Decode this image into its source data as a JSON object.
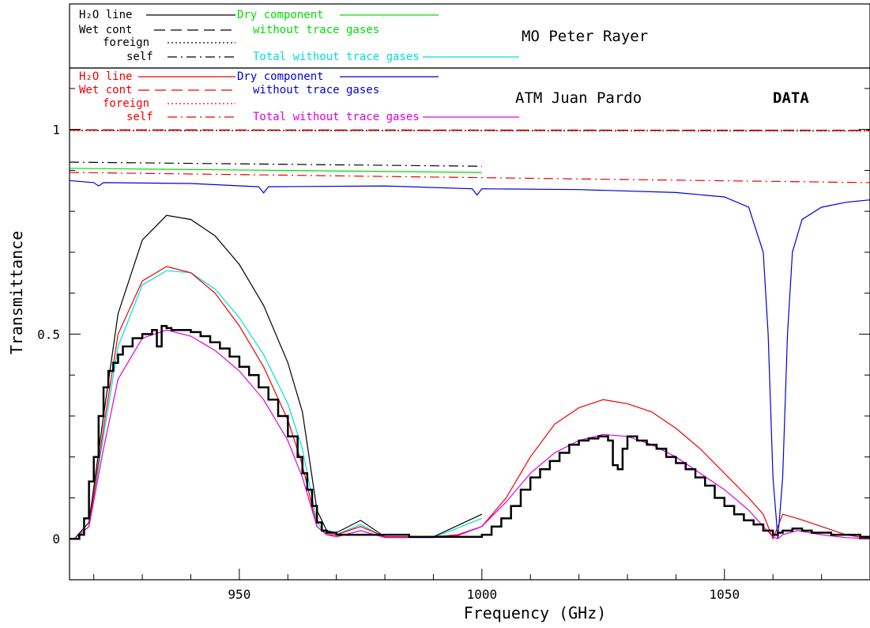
{
  "chart_data": {
    "type": "line",
    "xlabel": "Frequency (GHz)",
    "ylabel": "Transmittance",
    "xlim": [
      915,
      1080
    ],
    "ylim": [
      -0.1,
      1.15
    ],
    "x_ticks": [
      {
        "value": 950,
        "label": "950"
      },
      {
        "value": 1000,
        "label": "1000"
      },
      {
        "value": 1050,
        "label": "1050"
      }
    ],
    "y_ticks": [
      {
        "value": 0,
        "label": "0"
      },
      {
        "value": 0.5,
        "label": "0.5"
      },
      {
        "value": 1,
        "label": "1"
      }
    ],
    "grid": false,
    "panels": [
      {
        "title": "MO Peter Rayer",
        "legend": [
          {
            "label": "H₂O line",
            "color": "#000000",
            "dash": "solid"
          },
          {
            "label": "Wet cont",
            "color": "#000000",
            "dash": "dashed"
          },
          {
            "label": "foreign",
            "color": "#000000",
            "dash": "dotted"
          },
          {
            "label": "self",
            "color": "#000000",
            "dash": "dashdot"
          },
          {
            "label": "Dry component",
            "color": "#00dd00",
            "dash": "solid"
          },
          {
            "label": "without trace gases",
            "color": "#00dd00",
            "dash": "none"
          },
          {
            "label": "Total without trace gases",
            "color": "#00dddd",
            "dash": "solid"
          }
        ]
      },
      {
        "title": "ATM Juan Pardo",
        "legend": [
          {
            "label": "H₂O line",
            "color": "#ee0000",
            "dash": "solid"
          },
          {
            "label": "Wet cont",
            "color": "#ee0000",
            "dash": "dashed"
          },
          {
            "label": "foreign",
            "color": "#ee0000",
            "dash": "dotted"
          },
          {
            "label": "self",
            "color": "#ee0000",
            "dash": "dashdot"
          },
          {
            "label": "Dry component",
            "color": "#0000dd",
            "dash": "solid"
          },
          {
            "label": "without trace gases",
            "color": "#0000dd",
            "dash": "none"
          },
          {
            "label": "Total without trace gases",
            "color": "#dd00dd",
            "dash": "solid"
          }
        ]
      }
    ],
    "data_label": "DATA",
    "series": [
      {
        "color": "#000000",
        "dash": "solid",
        "x": [
          916,
          919,
          922,
          925,
          930,
          935,
          940,
          945,
          950,
          955,
          960,
          963,
          965,
          966,
          968,
          970,
          975,
          980,
          990,
          1000
        ],
        "y": [
          0,
          0.04,
          0.3,
          0.55,
          0.73,
          0.79,
          0.78,
          0.74,
          0.67,
          0.57,
          0.43,
          0.31,
          0.15,
          0.07,
          0.02,
          0.015,
          0.045,
          0.005,
          0.005,
          0.06
        ]
      },
      {
        "color": "#000000",
        "dash": "dashed",
        "x": [
          915,
          1080
        ],
        "y": [
          0.999,
          0.998
        ]
      },
      {
        "color": "#000000",
        "dash": "dotted",
        "x": [
          915,
          1080
        ],
        "y": [
          0.998,
          0.997
        ]
      },
      {
        "color": "#000000",
        "dash": "dashdot",
        "x": [
          915,
          1000
        ],
        "y": [
          0.92,
          0.91
        ]
      },
      {
        "color": "#00dd00",
        "dash": "solid",
        "x": [
          915,
          1000
        ],
        "y": [
          0.905,
          0.895
        ]
      },
      {
        "color": "#00dddd",
        "dash": "solid",
        "x": [
          916,
          919,
          922,
          925,
          930,
          935,
          940,
          945,
          950,
          955,
          960,
          963,
          965,
          966,
          968,
          970,
          975,
          980,
          990,
          1000
        ],
        "y": [
          0,
          0.03,
          0.25,
          0.47,
          0.62,
          0.655,
          0.65,
          0.61,
          0.54,
          0.45,
          0.33,
          0.22,
          0.1,
          0.04,
          0.01,
          0.01,
          0.035,
          0.003,
          0.003,
          0.05
        ]
      },
      {
        "color": "#ee0000",
        "dash": "solid",
        "x": [
          916,
          919,
          922,
          925,
          930,
          935,
          940,
          945,
          950,
          955,
          960,
          963,
          965,
          966,
          968,
          970,
          975,
          980,
          990,
          995,
          1000,
          1005,
          1010,
          1015,
          1020,
          1025,
          1030,
          1035,
          1040,
          1045,
          1050,
          1055,
          1058,
          1060,
          1062,
          1065,
          1070,
          1075,
          1080
        ],
        "y": [
          0,
          0.03,
          0.27,
          0.5,
          0.63,
          0.665,
          0.65,
          0.6,
          0.52,
          0.42,
          0.29,
          0.18,
          0.08,
          0.03,
          0.01,
          0.01,
          0.03,
          0.005,
          0.005,
          0.01,
          0.03,
          0.1,
          0.2,
          0.28,
          0.32,
          0.34,
          0.33,
          0.31,
          0.27,
          0.22,
          0.16,
          0.1,
          0.06,
          0.0,
          0.06,
          0.05,
          0.03,
          0.01,
          0.0
        ]
      },
      {
        "color": "#ee0000",
        "dash": "dashed",
        "x": [
          915,
          1080
        ],
        "y": [
          0.998,
          0.997
        ]
      },
      {
        "color": "#ee0000",
        "dash": "dotted",
        "x": [
          915,
          1080
        ],
        "y": [
          0.997,
          0.996
        ]
      },
      {
        "color": "#ee0000",
        "dash": "dashdot",
        "x": [
          915,
          1080
        ],
        "y": [
          0.895,
          0.87
        ]
      },
      {
        "color": "#0000dd",
        "dash": "solid",
        "x": [
          915,
          920,
          921,
          922,
          940,
          954,
          955,
          956,
          980,
          998,
          999,
          1000,
          1020,
          1040,
          1050,
          1055,
          1058,
          1059,
          1060,
          1061,
          1062,
          1063,
          1064,
          1066,
          1070,
          1075,
          1080
        ],
        "y": [
          0.875,
          0.87,
          0.862,
          0.87,
          0.868,
          0.86,
          0.845,
          0.86,
          0.862,
          0.855,
          0.84,
          0.855,
          0.853,
          0.846,
          0.835,
          0.81,
          0.7,
          0.5,
          0.15,
          0.0,
          0.15,
          0.5,
          0.7,
          0.78,
          0.81,
          0.822,
          0.828
        ]
      },
      {
        "color": "#dd00dd",
        "dash": "solid",
        "x": [
          916,
          919,
          922,
          925,
          930,
          935,
          940,
          945,
          950,
          955,
          960,
          963,
          965,
          966,
          968,
          970,
          975,
          980,
          990,
          995,
          1000,
          1005,
          1010,
          1015,
          1020,
          1025,
          1030,
          1035,
          1040,
          1045,
          1050,
          1055,
          1058,
          1060,
          1061,
          1062,
          1065,
          1070,
          1075,
          1080
        ],
        "y": [
          0,
          0.03,
          0.22,
          0.39,
          0.49,
          0.51,
          0.495,
          0.46,
          0.41,
          0.34,
          0.24,
          0.15,
          0.07,
          0.03,
          0.01,
          0.005,
          0.02,
          0.003,
          0.003,
          0.008,
          0.03,
          0.09,
          0.16,
          0.21,
          0.24,
          0.255,
          0.25,
          0.23,
          0.2,
          0.16,
          0.12,
          0.07,
          0.03,
          0.005,
          0.0,
          0.01,
          0.02,
          0.01,
          0.003,
          0.0
        ]
      },
      {
        "name": "DATA",
        "color": "#000000",
        "dash": "solid",
        "width": 2.5,
        "step": true,
        "x": [
          915,
          917,
          918,
          919,
          920,
          921,
          922,
          923,
          924,
          925,
          926,
          928,
          930,
          932,
          933,
          934,
          935,
          936,
          938,
          940,
          942,
          944,
          946,
          948,
          950,
          952,
          954,
          956,
          958,
          960,
          962,
          963,
          964,
          965,
          966,
          967,
          968,
          970,
          972,
          974,
          976,
          978,
          980,
          985,
          990,
          995,
          1000,
          1002,
          1004,
          1006,
          1008,
          1010,
          1012,
          1014,
          1016,
          1018,
          1020,
          1022,
          1024,
          1026,
          1027,
          1028,
          1029,
          1030,
          1032,
          1034,
          1036,
          1038,
          1040,
          1042,
          1044,
          1046,
          1048,
          1050,
          1052,
          1054,
          1056,
          1058,
          1060,
          1061,
          1062,
          1064,
          1066,
          1068,
          1070,
          1072,
          1074,
          1076,
          1078,
          1080
        ],
        "y": [
          0,
          0.01,
          0.05,
          0.14,
          0.2,
          0.3,
          0.37,
          0.41,
          0.43,
          0.45,
          0.47,
          0.49,
          0.5,
          0.51,
          0.47,
          0.52,
          0.515,
          0.51,
          0.51,
          0.505,
          0.495,
          0.48,
          0.465,
          0.445,
          0.42,
          0.4,
          0.37,
          0.34,
          0.3,
          0.25,
          0.2,
          0.16,
          0.12,
          0.08,
          0.04,
          0.02,
          0.015,
          0.01,
          0.01,
          0.01,
          0.01,
          0.01,
          0.01,
          0.005,
          0.005,
          0.005,
          0.01,
          0.03,
          0.05,
          0.08,
          0.12,
          0.15,
          0.17,
          0.19,
          0.21,
          0.23,
          0.24,
          0.245,
          0.25,
          0.24,
          0.18,
          0.17,
          0.22,
          0.25,
          0.24,
          0.23,
          0.22,
          0.2,
          0.185,
          0.17,
          0.15,
          0.13,
          0.1,
          0.08,
          0.06,
          0.045,
          0.035,
          0.02,
          0.01,
          0.015,
          0.02,
          0.025,
          0.02,
          0.015,
          0.015,
          0.01,
          0.01,
          0.01,
          0.005,
          0.0
        ]
      }
    ]
  }
}
